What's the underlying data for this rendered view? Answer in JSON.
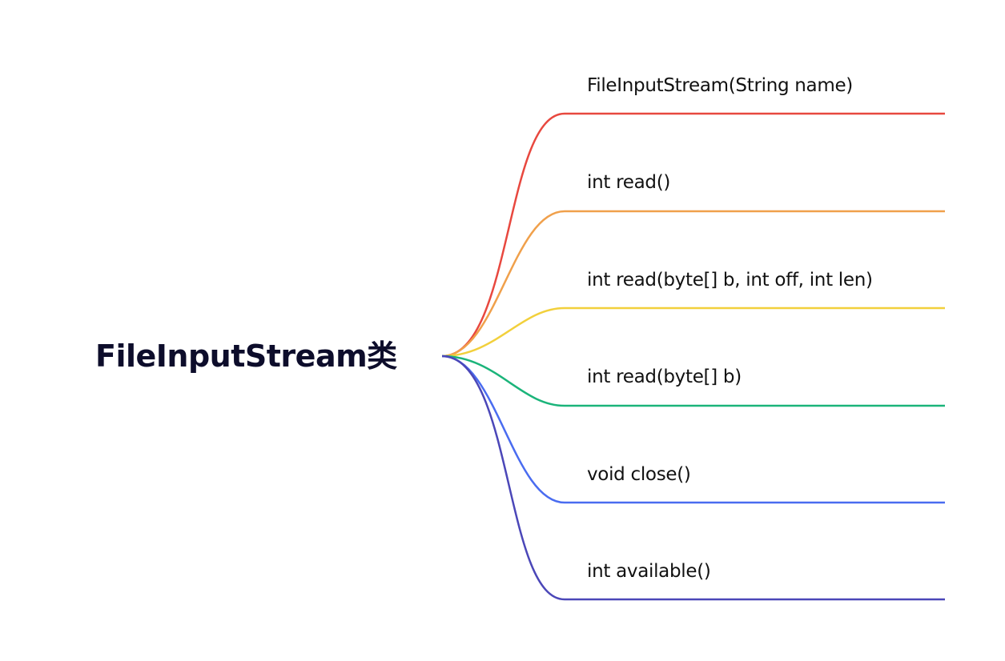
{
  "root": {
    "title": "FileInputStream类"
  },
  "branches": [
    {
      "label": "FileInputStream(String name)",
      "color": "#e8483f"
    },
    {
      "label": "int read()",
      "color": "#f0a04b"
    },
    {
      "label": "int read(byte[] b, int off, int len)",
      "color": "#f2d03c"
    },
    {
      "label": "int read(byte[] b)",
      "color": "#1bb47a"
    },
    {
      "label": "void close()",
      "color": "#4a6cf0"
    },
    {
      "label": "int available()",
      "color": "#4b47b8"
    }
  ]
}
